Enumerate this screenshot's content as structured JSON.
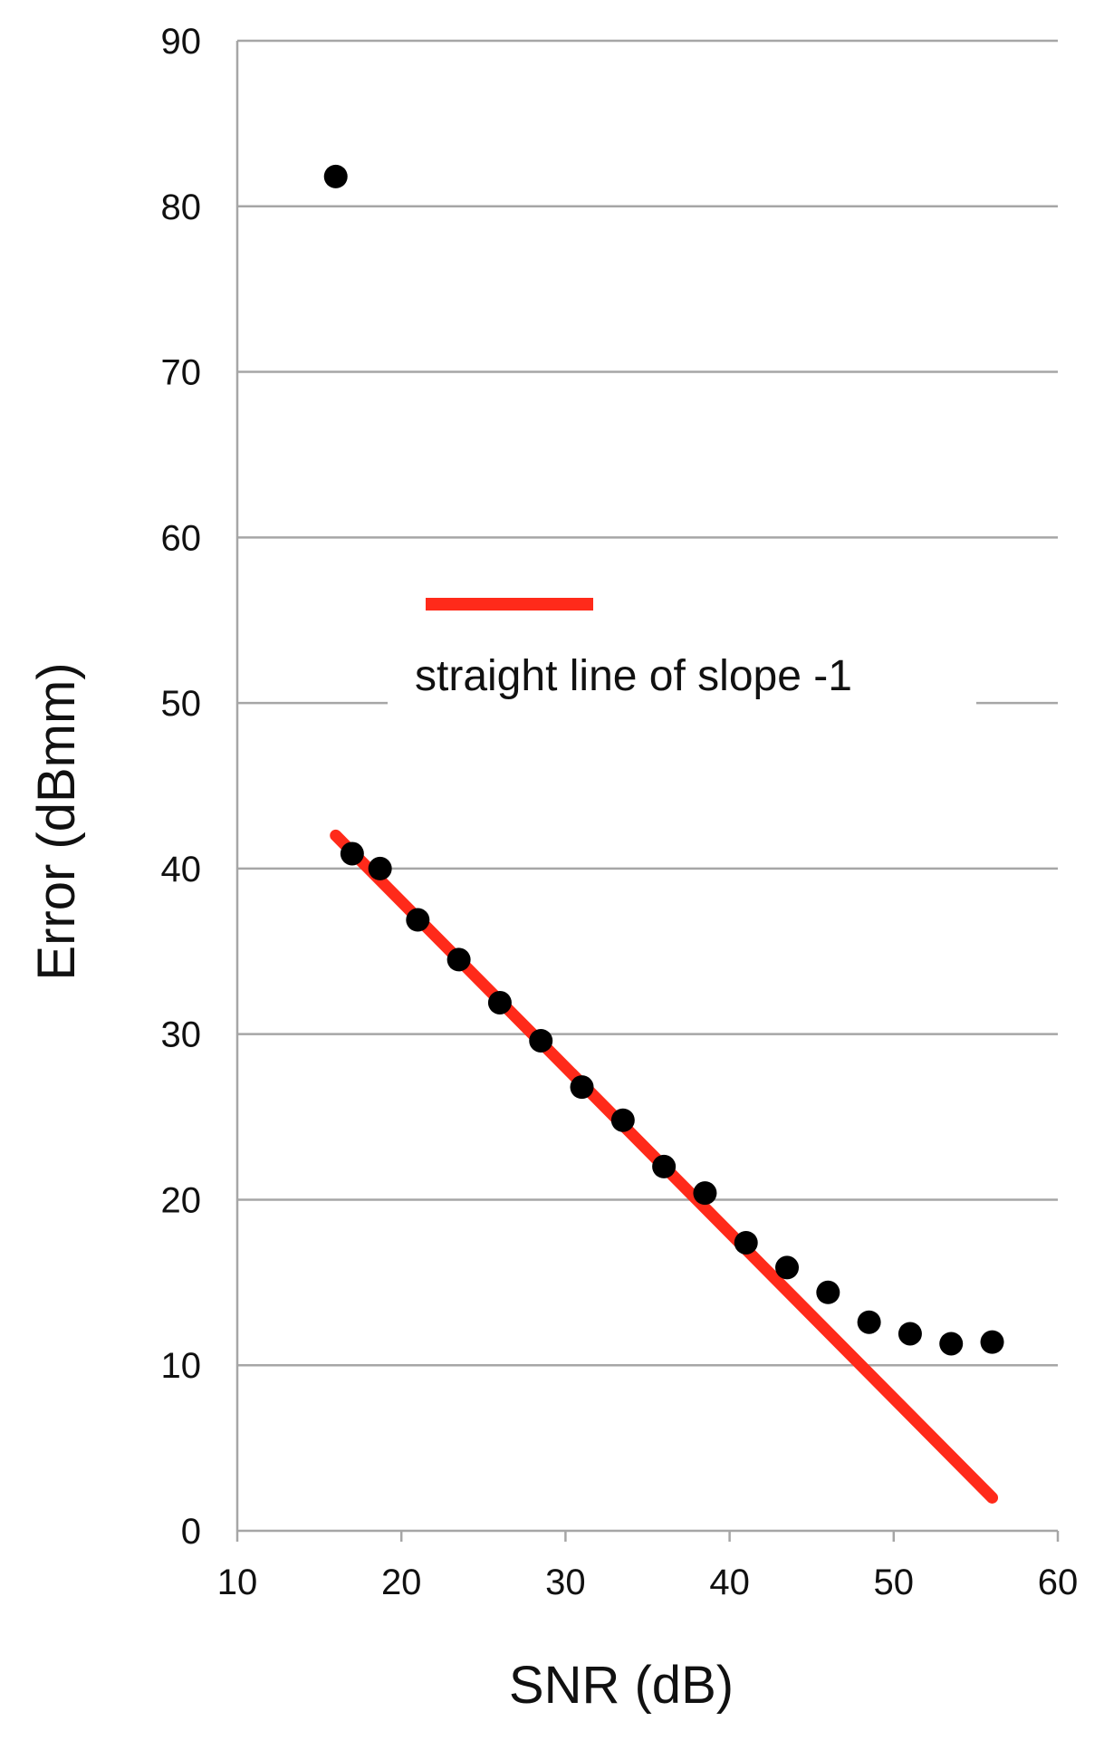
{
  "chart_data": {
    "type": "scatter",
    "xlabel": "SNR (dB)",
    "ylabel": "Error (dBmm)",
    "xlim": [
      10,
      60
    ],
    "ylim": [
      0,
      90
    ],
    "x_ticks": [
      "10",
      "20",
      "30",
      "40",
      "50",
      "60"
    ],
    "y_ticks": [
      "0",
      "10",
      "20",
      "30",
      "40",
      "50",
      "60",
      "70",
      "80",
      "90"
    ],
    "grid": "horizontal",
    "series": [
      {
        "kind": "points",
        "color": "#000000",
        "points": [
          {
            "x": 16,
            "y": 81.8
          },
          {
            "x": 17,
            "y": 40.9
          },
          {
            "x": 18.7,
            "y": 40.0
          },
          {
            "x": 21,
            "y": 36.9
          },
          {
            "x": 23.5,
            "y": 34.5
          },
          {
            "x": 26,
            "y": 31.9
          },
          {
            "x": 28.5,
            "y": 29.6
          },
          {
            "x": 31,
            "y": 26.8
          },
          {
            "x": 33.5,
            "y": 24.8
          },
          {
            "x": 36,
            "y": 22.0
          },
          {
            "x": 38.5,
            "y": 20.4
          },
          {
            "x": 41,
            "y": 17.4
          },
          {
            "x": 43.5,
            "y": 15.9
          },
          {
            "x": 46,
            "y": 14.4
          },
          {
            "x": 48.5,
            "y": 12.6
          },
          {
            "x": 51,
            "y": 11.9
          },
          {
            "x": 53.5,
            "y": 11.3
          },
          {
            "x": 56,
            "y": 11.4
          }
        ]
      },
      {
        "kind": "line",
        "name": "straight line of slope -1",
        "color": "#ff2a1a",
        "points": [
          {
            "x": 16,
            "y": 42.0
          },
          {
            "x": 56,
            "y": 2.0
          }
        ]
      }
    ],
    "legend": {
      "placement": "center-left",
      "label": "straight line of slope -1"
    }
  }
}
